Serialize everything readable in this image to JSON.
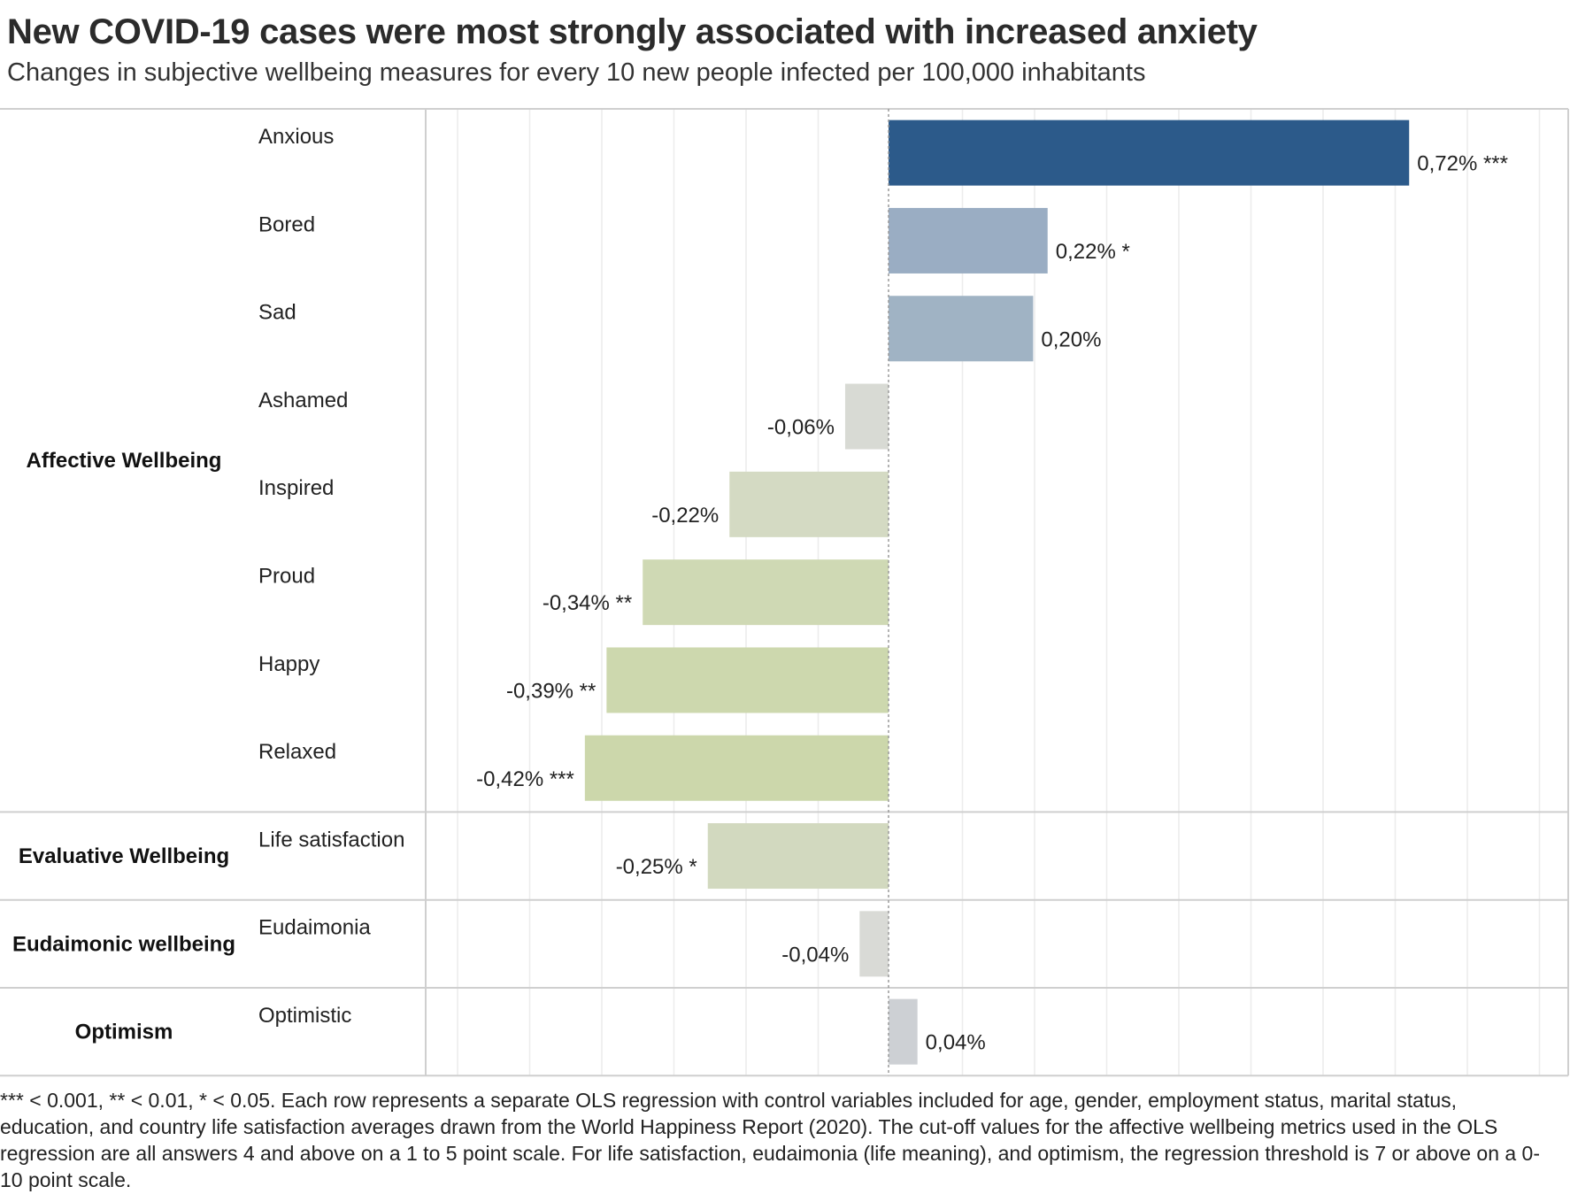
{
  "title": "New COVID-19 cases were most strongly associated with increased anxiety",
  "subtitle": "Changes in subjective wellbeing measures for every 10 new people infected per 100,000 inhabitants",
  "footnote": "*** < 0.001, ** < 0.01, * < 0.05. Each row represents a separate OLS regression with control variables included for age, gender, employment status, marital status, education, and country life satisfaction averages drawn from the World Happiness Report (2020). The cut-off values for the affective wellbeing metrics used in the OLS regression are all answers 4 and above on a 1 to 5 point scale. For life satisfaction, eudaimonia (life meaning), and optimism, the regression threshold is 7 or above on a 0-10 point scale.",
  "chart_data": {
    "type": "bar",
    "orientation": "horizontal",
    "xlim": [
      -0.6,
      0.95
    ],
    "unit": "%",
    "groups": [
      {
        "name": "Affective Wellbeing",
        "items": [
          {
            "label": "Anxious",
            "value": 0.72,
            "display": "0,72% ***",
            "color": "#2c5a8a"
          },
          {
            "label": "Bored",
            "value": 0.22,
            "display": "0,22% *",
            "color": "#9aadc3"
          },
          {
            "label": "Sad",
            "value": 0.2,
            "display": "0,20%",
            "color": "#a0b3c4"
          },
          {
            "label": "Ashamed",
            "value": -0.06,
            "display": "-0,06%",
            "color": "#d8dad4"
          },
          {
            "label": "Inspired",
            "value": -0.22,
            "display": "-0,22%",
            "color": "#d4dac3"
          },
          {
            "label": "Proud",
            "value": -0.34,
            "display": "-0,34% **",
            "color": "#cfd9b4"
          },
          {
            "label": "Happy",
            "value": -0.39,
            "display": "-0,39% **",
            "color": "#cdd8ae"
          },
          {
            "label": "Relaxed",
            "value": -0.42,
            "display": "-0,42% ***",
            "color": "#ccd7ab"
          }
        ]
      },
      {
        "name": "Evaluative Wellbeing",
        "items": [
          {
            "label": "Life satisfaction",
            "value": -0.25,
            "display": "-0,25% *",
            "color": "#d2d9bf"
          }
        ]
      },
      {
        "name": "Eudaimonic wellbeing",
        "items": [
          {
            "label": "Eudaimonia",
            "value": -0.04,
            "display": "-0,04%",
            "color": "#d9dad6"
          }
        ]
      },
      {
        "name": "Optimism",
        "items": [
          {
            "label": "Optimistic",
            "value": 0.04,
            "display": "0,04%",
            "color": "#cdd0d4"
          }
        ]
      }
    ]
  }
}
